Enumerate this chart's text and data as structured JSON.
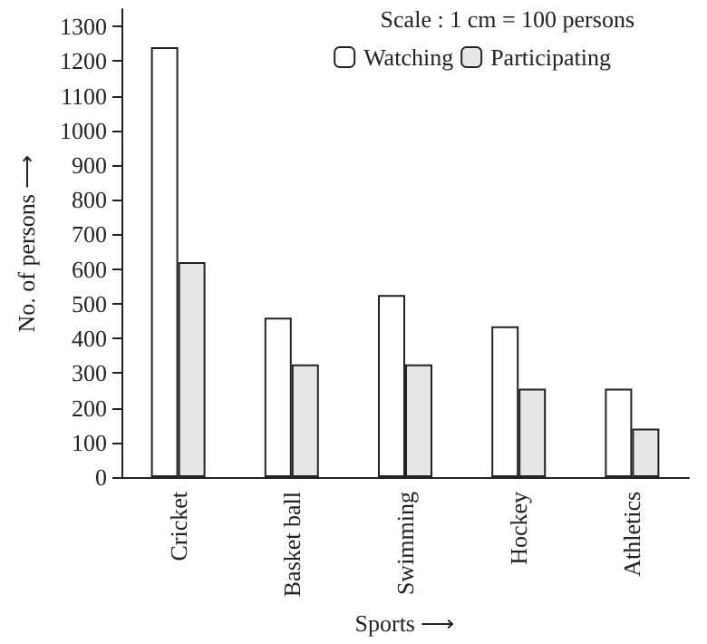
{
  "chart_data": {
    "type": "bar",
    "xlabel": "Sports ⟶",
    "ylabel": "No. of persons ⟶",
    "annotations": [
      "Scale : 1 cm = 100 persons"
    ],
    "categories": [
      "Cricket",
      "Basket ball",
      "Swimming",
      "Hockey",
      "Athletics"
    ],
    "series": [
      {
        "name": "Watching",
        "color": "#ffffff",
        "values": [
          1240,
          460,
          525,
          435,
          255
        ]
      },
      {
        "name": "Participating",
        "color": "#e6e6e6",
        "values": [
          620,
          325,
          325,
          255,
          140
        ]
      }
    ],
    "ylim": [
      0,
      1350
    ],
    "yticks": [
      0,
      100,
      200,
      300,
      400,
      500,
      600,
      700,
      800,
      900,
      1000,
      1100,
      1200,
      1300
    ],
    "grid": false,
    "legend": "top right"
  }
}
